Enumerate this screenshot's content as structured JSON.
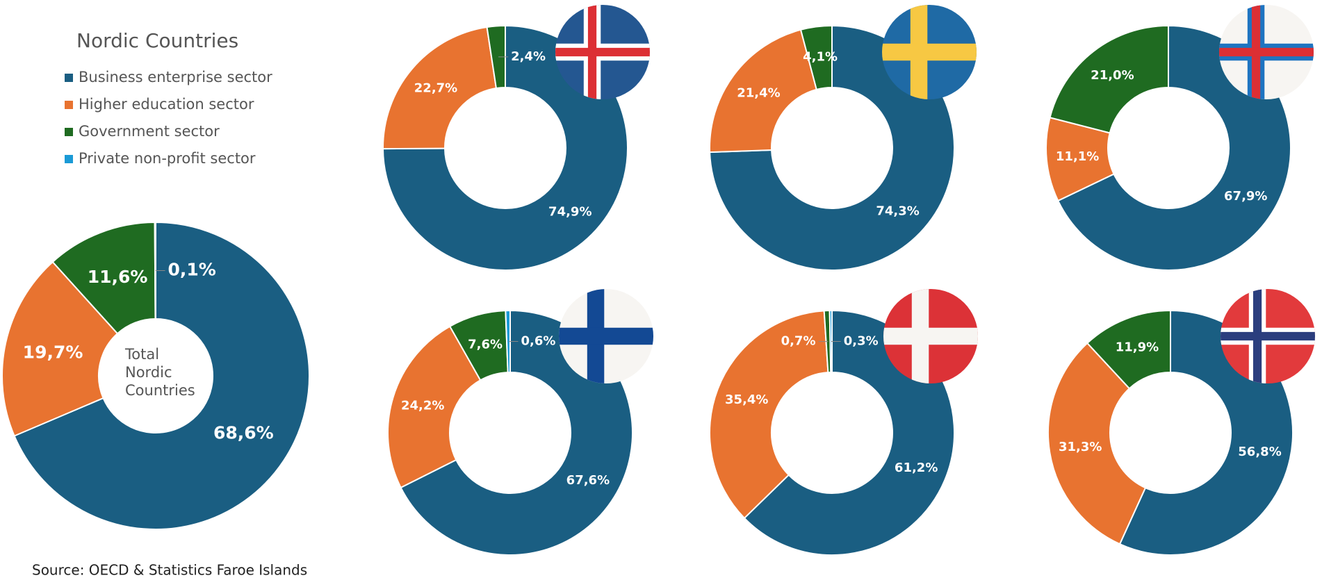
{
  "legend": {
    "title": "Nordic Countries",
    "categories": [
      "Business enterprise sector",
      "Higher education sector",
      "Government sector",
      "Private non-profit sector"
    ],
    "colors": [
      "#1a5e82",
      "#e87330",
      "#1f6b21",
      "#1a9ad6"
    ]
  },
  "source": "Source: OECD & Statistics Faroe Islands",
  "chart_data": [
    {
      "type": "pie",
      "donut": true,
      "label": "Total Nordic Countries",
      "values": [
        68.6,
        19.7,
        11.6,
        0.1
      ],
      "value_labels": [
        "68,6%",
        "19,7%",
        "11,6%",
        "0,1%"
      ]
    },
    {
      "type": "pie",
      "donut": true,
      "values": [
        74.9,
        22.7,
        2.4
      ],
      "value_labels": [
        "74,9%",
        "22,7%",
        "2,4%"
      ]
    },
    {
      "type": "pie",
      "donut": true,
      "values": [
        74.3,
        21.4,
        4.1
      ],
      "value_labels": [
        "74,3%",
        "21,4%",
        "4,1%"
      ]
    },
    {
      "type": "pie",
      "donut": true,
      "values": [
        67.9,
        11.1,
        21.0
      ],
      "value_labels": [
        "67,9%",
        "11,1%",
        "21,0%"
      ]
    },
    {
      "type": "pie",
      "donut": true,
      "values": [
        67.6,
        24.2,
        7.6,
        0.6
      ],
      "value_labels": [
        "67,6%",
        "24,2%",
        "7,6%",
        "0,6%"
      ]
    },
    {
      "type": "pie",
      "donut": true,
      "values": [
        61.2,
        35.4,
        0.7,
        0.3
      ],
      "value_labels": [
        "61,2%",
        "35,4%",
        "0,7%",
        "0,3%"
      ]
    },
    {
      "type": "pie",
      "donut": true,
      "values": [
        56.8,
        31.3,
        11.9
      ],
      "value_labels": [
        "56,8%",
        "31,3%",
        "11,9%"
      ]
    }
  ]
}
